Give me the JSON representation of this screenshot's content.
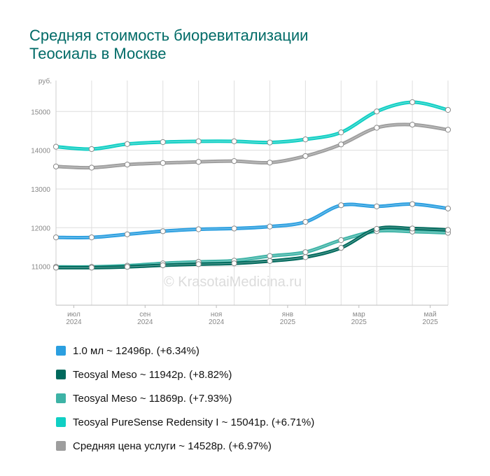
{
  "title": {
    "line1": "Средняя стоимость биоревитализации",
    "line2": "Теосиаль в Москве"
  },
  "watermark": "© KrasotaiMedicina.ru",
  "chart_data": {
    "type": "line",
    "y_unit_label": "руб.",
    "ylim": [
      10000,
      15800
    ],
    "y_ticks": [
      11000,
      12000,
      13000,
      14000,
      15000
    ],
    "grid": true,
    "legend_position": "bottom",
    "x": [
      0,
      1,
      2,
      3,
      4,
      5,
      6,
      7,
      8,
      9,
      10,
      11
    ],
    "x_ticks": [
      {
        "x": 0.5,
        "month": "июл",
        "year": "2024"
      },
      {
        "x": 2.5,
        "month": "сен",
        "year": "2024"
      },
      {
        "x": 4.5,
        "month": "ноя",
        "year": "2024"
      },
      {
        "x": 6.5,
        "month": "янв",
        "year": "2025"
      },
      {
        "x": 8.5,
        "month": "мар",
        "year": "2025"
      },
      {
        "x": 10.5,
        "month": "май",
        "year": "2025"
      }
    ],
    "series": [
      {
        "name": "1.0 мл",
        "legend": "1.0 мл ~ 12496р. (+6.34%)",
        "color": "#2b9fe0",
        "values": [
          11750,
          11750,
          11830,
          11910,
          11960,
          11980,
          12030,
          12150,
          12580,
          12550,
          12610,
          12496
        ]
      },
      {
        "name": "Teosyal Meso",
        "legend": "Teosyal Meso ~ 11942р. (+8.82%)",
        "color": "#00695c",
        "values": [
          10970,
          10970,
          10990,
          11030,
          11060,
          11080,
          11140,
          11240,
          11480,
          11970,
          11980,
          11942
        ]
      },
      {
        "name": "Teosyal Meso",
        "legend": "Teosyal Meso ~ 11869р. (+7.93%)",
        "color": "#3db3a6",
        "values": [
          10990,
          10990,
          11020,
          11080,
          11120,
          11150,
          11270,
          11370,
          11680,
          11910,
          11900,
          11869
        ]
      },
      {
        "name": "Teosyal PureSense Redensity I",
        "legend": "Teosyal PureSense Redensity I ~ 15041р. (+6.71%)",
        "color": "#10cfc4",
        "values": [
          14090,
          14030,
          14160,
          14210,
          14230,
          14230,
          14200,
          14280,
          14460,
          15000,
          15240,
          15041
        ]
      },
      {
        "name": "Средняя цена услуги",
        "legend": "Средняя цена услуги ~ 14528р. (+6.97%)",
        "color": "#9e9e9e",
        "values": [
          13580,
          13550,
          13630,
          13670,
          13700,
          13720,
          13680,
          13850,
          14150,
          14580,
          14660,
          14528
        ]
      }
    ]
  }
}
